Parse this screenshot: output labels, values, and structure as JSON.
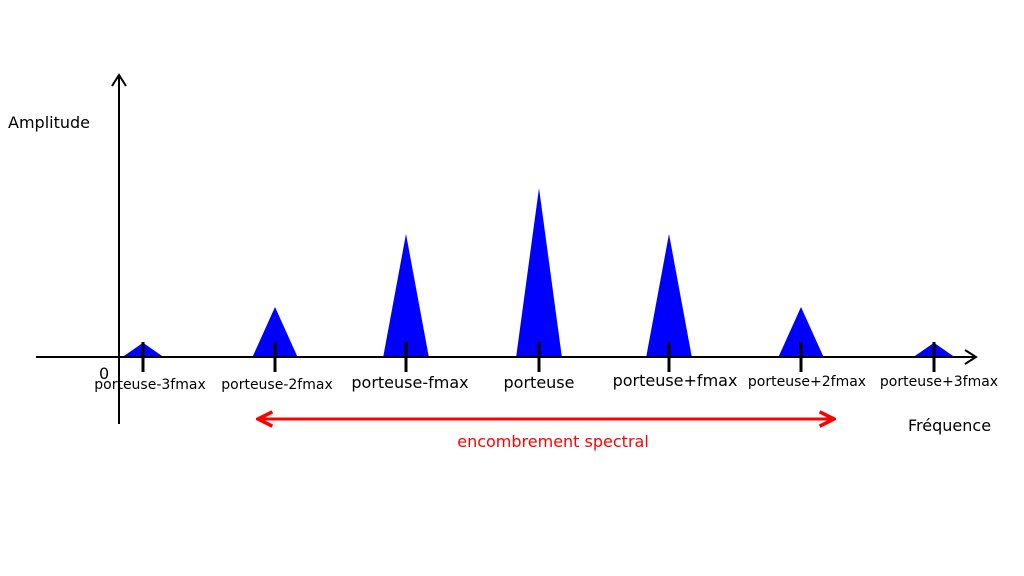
{
  "diagram": {
    "y_axis_label": "Amplitude",
    "x_axis_label": "Fréquence",
    "origin_label": "0",
    "bandwidth_label": "encombrement spectral",
    "colors": {
      "peaks": "#0000ff",
      "bandwidth_arrow": "#ff0000",
      "axes": "#000000"
    },
    "components": [
      {
        "label": "porteuse-3fmax",
        "relative_amplitude": 0.09
      },
      {
        "label": "porteuse-2fmax",
        "relative_amplitude": 0.3
      },
      {
        "label": "porteuse-fmax",
        "relative_amplitude": 0.73
      },
      {
        "label": "porteuse",
        "relative_amplitude": 1.0
      },
      {
        "label": "porteuse+fmax",
        "relative_amplitude": 0.73
      },
      {
        "label": "porteuse+2fmax",
        "relative_amplitude": 0.3
      },
      {
        "label": "porteuse+3fmax",
        "relative_amplitude": 0.09
      }
    ]
  }
}
